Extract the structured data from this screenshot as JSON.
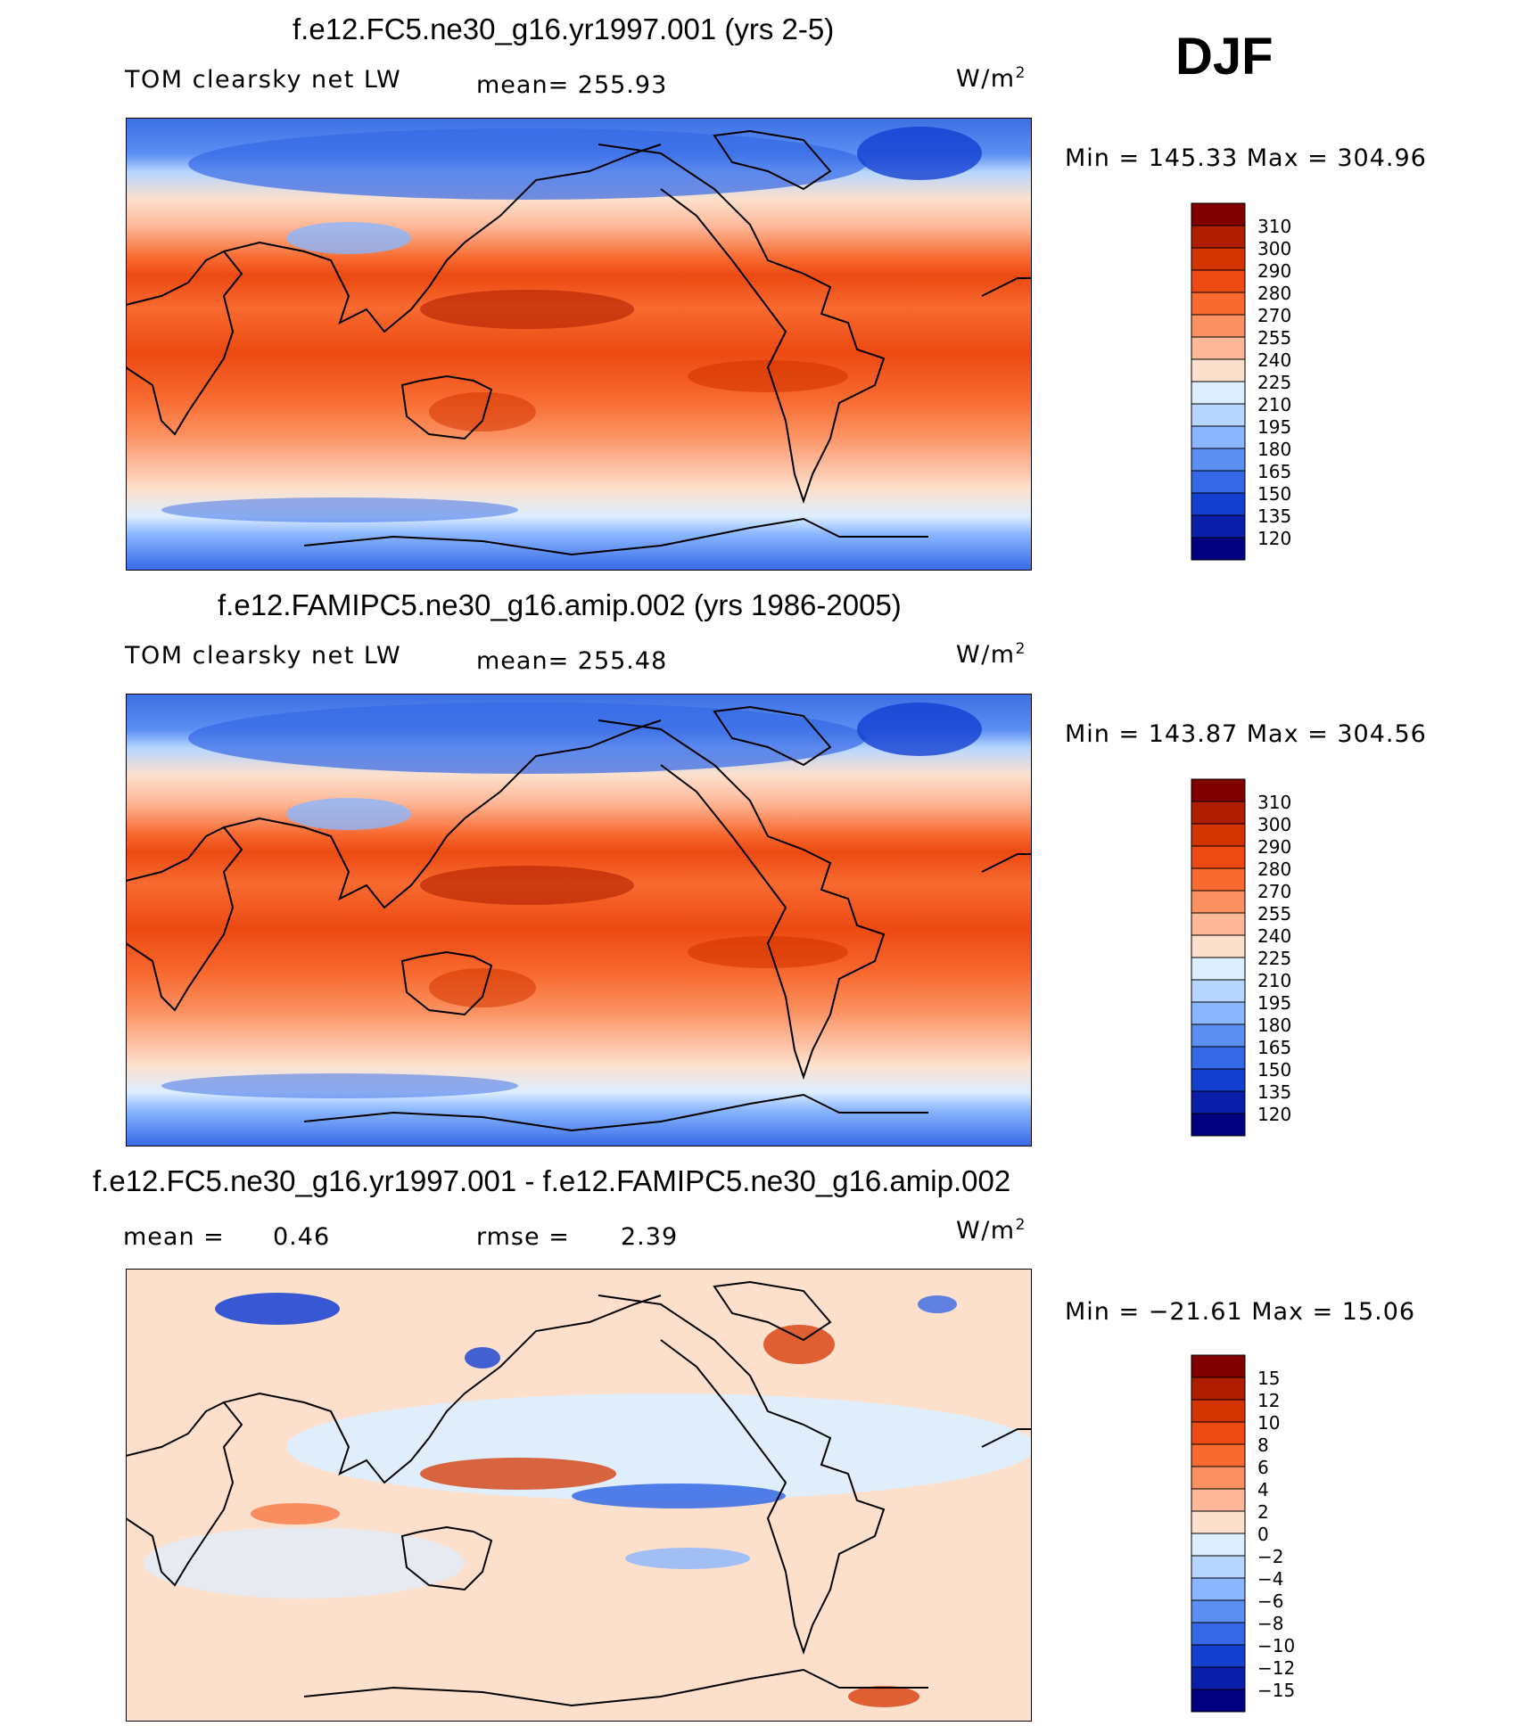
{
  "season": "DJF",
  "panels": [
    {
      "title": "f.e12.FC5.ne30_g16.yr1997.001 (yrs 2-5)",
      "variable": "TOM clearsky net LW",
      "stat_text": "mean= 255.93",
      "units_base": "W/m",
      "units_exp": "2",
      "minmax": "Min = 145.33 Max = 304.96"
    },
    {
      "title": "f.e12.FAMIPC5.ne30_g16.amip.002 (yrs 1986-2005)",
      "variable": "TOM clearsky net LW",
      "stat_text": "mean= 255.48",
      "units_base": "W/m",
      "units_exp": "2",
      "minmax": "Min = 143.87 Max = 304.56"
    },
    {
      "title": "f.e12.FC5.ne30_g16.yr1997.001 - f.e12.FAMIPC5.ne30_g16.amip.002",
      "mean_label": "mean =",
      "mean_value": "0.46",
      "rmse_label": "rmse =",
      "rmse_value": "2.39",
      "units_base": "W/m",
      "units_exp": "2",
      "minmax": "Min = −21.61 Max =  15.06"
    }
  ],
  "colorbars": [
    {
      "labels": [
        "310",
        "300",
        "290",
        "280",
        "270",
        "255",
        "240",
        "225",
        "210",
        "195",
        "180",
        "165",
        "150",
        "135",
        "120"
      ],
      "colors": [
        "#800000",
        "#b01e00",
        "#d43400",
        "#ec4a12",
        "#f86a30",
        "#fb9160",
        "#fcb898",
        "#fde0cc",
        "#ddeeff",
        "#b6d6ff",
        "#8ab6ff",
        "#5c8ff2",
        "#3468e6",
        "#1440d2",
        "#0a1eaa",
        "#000080"
      ]
    },
    {
      "labels": [
        "310",
        "300",
        "290",
        "280",
        "270",
        "255",
        "240",
        "225",
        "210",
        "195",
        "180",
        "165",
        "150",
        "135",
        "120"
      ],
      "colors": [
        "#800000",
        "#b01e00",
        "#d43400",
        "#ec4a12",
        "#f86a30",
        "#fb9160",
        "#fcb898",
        "#fde0cc",
        "#ddeeff",
        "#b6d6ff",
        "#8ab6ff",
        "#5c8ff2",
        "#3468e6",
        "#1440d2",
        "#0a1eaa",
        "#000080"
      ]
    },
    {
      "labels": [
        "15",
        "12",
        "10",
        "8",
        "6",
        "4",
        "2",
        "0",
        "−2",
        "−4",
        "−6",
        "−8",
        "−10",
        "−12",
        "−15"
      ],
      "colors": [
        "#800000",
        "#b01e00",
        "#d43400",
        "#ec4a12",
        "#f86a30",
        "#fb9160",
        "#fcb898",
        "#fde0cc",
        "#ddeeff",
        "#b6d6ff",
        "#8ab6ff",
        "#5c8ff2",
        "#3468e6",
        "#1440d2",
        "#0a1eaa",
        "#000080"
      ]
    }
  ]
}
